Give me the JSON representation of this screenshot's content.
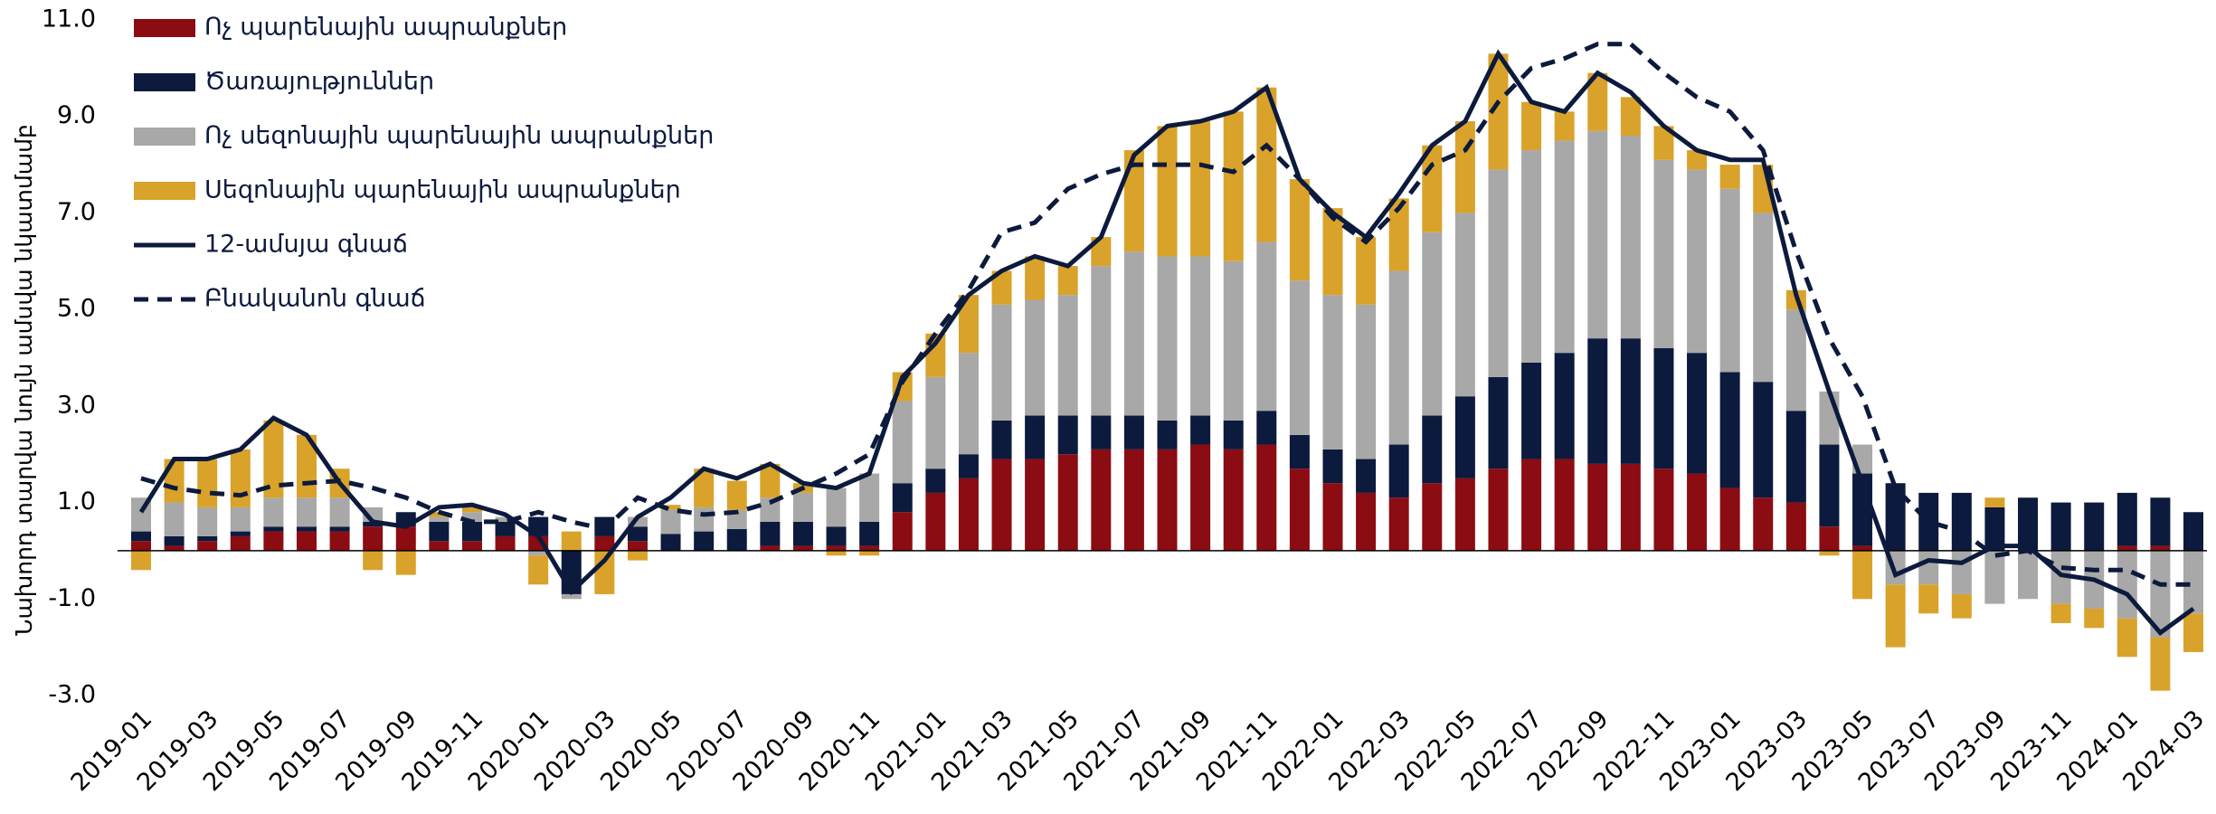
{
  "chart_data": {
    "type": "bar",
    "stacked": true,
    "y_label": "Նախորդ տարվա նույն ամսվա նկատմամբ",
    "categories": [
      "2019-01",
      null,
      "2019-03",
      null,
      "2019-05",
      null,
      "2019-07",
      null,
      "2019-09",
      null,
      "2019-11",
      null,
      "2020-01",
      null,
      "2020-03",
      null,
      "2020-05",
      null,
      "2020-07",
      null,
      "2020-09",
      null,
      "2020-11",
      null,
      "2021-01",
      null,
      "2021-03",
      null,
      "2021-05",
      null,
      "2021-07",
      null,
      "2021-09",
      null,
      "2021-11",
      null,
      "2022-01",
      null,
      "2022-03",
      null,
      "2022-05",
      null,
      "2022-07",
      null,
      "2022-09",
      null,
      "2022-11",
      null,
      "2023-01",
      null,
      "2023-03",
      null,
      "2023-05",
      null,
      "2023-07",
      null,
      "2023-09",
      null,
      "2023-11",
      null,
      "2024-01",
      null,
      "2024-03"
    ],
    "ylim": [
      -3,
      11
    ],
    "yticks": [
      {
        "value": -3,
        "label": "-3.0"
      },
      {
        "value": -1,
        "label": "-1.0"
      },
      {
        "value": 1,
        "label": "1.0"
      },
      {
        "value": 3,
        "label": "3.0"
      },
      {
        "value": 5,
        "label": "5.0"
      },
      {
        "value": 7,
        "label": "7.0"
      },
      {
        "value": 9,
        "label": "9.0"
      },
      {
        "value": 11,
        "label": "11.0"
      }
    ],
    "grid": false,
    "legend": "top-left",
    "series": [
      {
        "name": "Ոչ պարենային ապրանքներ",
        "color": "#8b0c12",
        "type": "bar",
        "values": [
          0.2,
          0.1,
          0.2,
          0.3,
          0.4,
          0.4,
          0.4,
          0.5,
          0.5,
          0.2,
          0.2,
          0.3,
          0.3,
          0,
          0.3,
          0.2,
          0,
          0,
          0,
          0.1,
          0.1,
          0.1,
          0.1,
          0.8,
          1.2,
          1.5,
          1.9,
          1.9,
          2.0,
          2.1,
          2.1,
          2.1,
          2.2,
          2.1,
          2.2,
          1.7,
          1.4,
          1.2,
          1.1,
          1.4,
          1.5,
          1.7,
          1.9,
          1.9,
          1.8,
          1.8,
          1.7,
          1.6,
          1.3,
          1.1,
          1.0,
          0.5,
          0.1,
          0,
          0,
          0,
          0,
          0,
          0,
          0,
          0.1,
          0.1,
          0
        ]
      },
      {
        "name": "Ծառայություններ",
        "color": "#0c1a3d",
        "type": "bar",
        "values": [
          0.2,
          0.2,
          0.1,
          0.1,
          0.1,
          0.1,
          0.1,
          0.1,
          0.3,
          0.4,
          0.4,
          0.3,
          0.4,
          -0.9,
          0.4,
          0.3,
          0.35,
          0.4,
          0.45,
          0.5,
          0.5,
          0.4,
          0.5,
          0.6,
          0.5,
          0.5,
          0.8,
          0.9,
          0.8,
          0.7,
          0.7,
          0.6,
          0.6,
          0.6,
          0.7,
          0.7,
          0.7,
          0.7,
          1.1,
          1.4,
          1.7,
          1.9,
          2.0,
          2.2,
          2.6,
          2.6,
          2.5,
          2.5,
          2.4,
          2.4,
          1.9,
          1.7,
          1.5,
          1.4,
          1.2,
          1.2,
          0.9,
          1.1,
          1.0,
          1.0,
          1.1,
          1.0,
          0.8
        ]
      },
      {
        "name": "Ոչ սեզոնային պարենային ապրանքներ",
        "color": "#a8a8a8",
        "type": "bar",
        "values": [
          0.7,
          0.7,
          0.6,
          0.5,
          0.6,
          0.6,
          0.6,
          0.3,
          0,
          0.1,
          0.2,
          0.1,
          -0.1,
          -0.1,
          0,
          0.2,
          0.5,
          0.5,
          0.4,
          0.5,
          0.6,
          0.8,
          1.0,
          1.7,
          1.9,
          2.1,
          2.4,
          2.4,
          2.5,
          3.1,
          3.4,
          3.4,
          3.3,
          3.3,
          3.5,
          3.2,
          3.2,
          3.2,
          3.6,
          3.8,
          3.8,
          4.3,
          4.4,
          4.4,
          4.3,
          4.2,
          3.9,
          3.8,
          3.8,
          3.5,
          2.1,
          1.1,
          0.6,
          -0.7,
          -0.7,
          -0.9,
          -1.1,
          -1.0,
          -1.1,
          -1.2,
          -1.4,
          -1.8,
          -1.3
        ]
      },
      {
        "name": "Սեզոնային պարենային ապրանքներ",
        "color": "#d9a22a",
        "type": "bar",
        "values": [
          -0.4,
          0.9,
          1.0,
          1.2,
          1.6,
          1.3,
          0.6,
          -0.4,
          -0.5,
          0.1,
          0.1,
          0,
          -0.6,
          0.4,
          -0.9,
          -0.2,
          0.1,
          0.8,
          0.6,
          0.7,
          0.2,
          -0.1,
          -0.1,
          0.6,
          0.9,
          1.2,
          0.7,
          0.9,
          0.6,
          0.6,
          2.1,
          2.7,
          2.8,
          3.1,
          3.2,
          2.1,
          1.8,
          1.4,
          1.5,
          1.8,
          1.9,
          2.4,
          1.0,
          0.6,
          1.2,
          0.8,
          0.7,
          0.4,
          0.5,
          1.0,
          0.4,
          -0.1,
          -1.0,
          -1.3,
          -0.6,
          -0.5,
          0.2,
          0,
          -0.4,
          -0.4,
          -0.8,
          -1.1,
          -0.8
        ]
      },
      {
        "name": "12-ամսյա գնաճ",
        "color": "#0c1a3d",
        "type": "line",
        "dashed": false,
        "values": [
          0.8,
          1.9,
          1.9,
          2.1,
          2.75,
          2.4,
          1.4,
          0.6,
          0.5,
          0.9,
          0.95,
          0.75,
          0.3,
          -0.85,
          -0.2,
          0.7,
          1.1,
          1.7,
          1.5,
          1.8,
          1.4,
          1.3,
          1.6,
          3.6,
          4.3,
          5.3,
          5.8,
          6.1,
          5.9,
          6.5,
          8.2,
          8.8,
          8.9,
          9.1,
          9.6,
          7.7,
          7.0,
          6.5,
          7.4,
          8.4,
          8.9,
          10.3,
          9.3,
          9.1,
          9.9,
          9.5,
          8.8,
          8.3,
          8.1,
          8.1,
          5.3,
          3.3,
          1.4,
          -0.5,
          -0.2,
          -0.25,
          0.1,
          0.1,
          -0.5,
          -0.6,
          -0.9,
          -1.7,
          -1.2
        ]
      },
      {
        "name": "Բնականոն գնաճ",
        "color": "#0c1a3d",
        "type": "line",
        "dashed": true,
        "values": [
          1.5,
          1.3,
          1.2,
          1.15,
          1.35,
          1.4,
          1.45,
          1.3,
          1.1,
          0.8,
          0.6,
          0.6,
          0.8,
          0.6,
          0.45,
          1.1,
          0.85,
          0.75,
          0.8,
          1.0,
          1.3,
          1.6,
          2.0,
          3.5,
          4.5,
          5.4,
          6.6,
          6.8,
          7.5,
          7.8,
          8.0,
          8.0,
          8.0,
          7.85,
          8.4,
          7.7,
          6.9,
          6.4,
          7.1,
          8.0,
          8.3,
          9.3,
          10.0,
          10.2,
          10.5,
          10.5,
          9.9,
          9.4,
          9.1,
          8.3,
          6.2,
          4.4,
          3.2,
          1.3,
          0.6,
          0.4,
          -0.1,
          0.0,
          -0.35,
          -0.4,
          -0.4,
          -0.7,
          -0.7
        ]
      }
    ]
  }
}
